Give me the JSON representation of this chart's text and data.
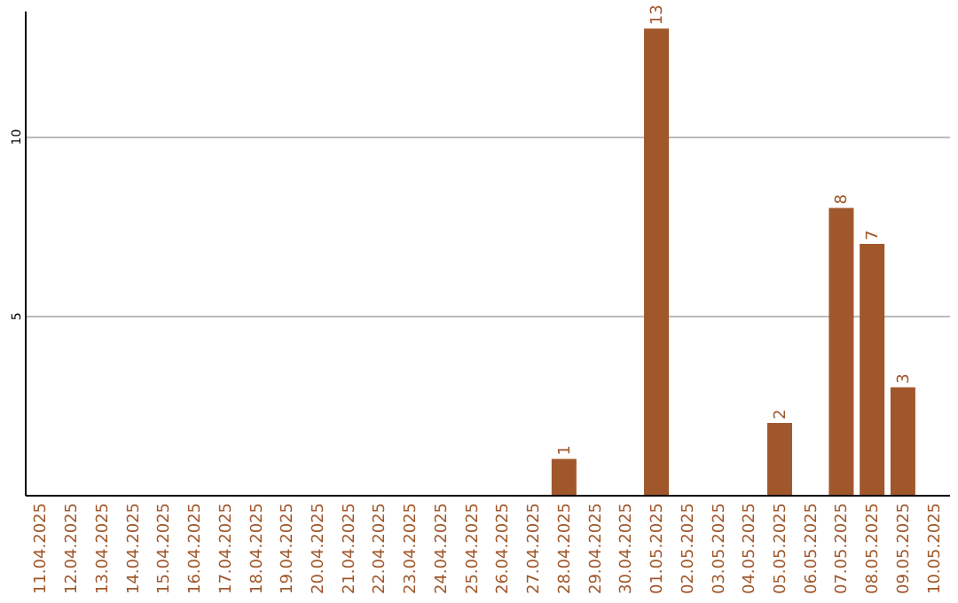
{
  "chart_data": {
    "type": "bar",
    "categories": [
      "11.04.2025",
      "12.04.2025",
      "13.04.2025",
      "14.04.2025",
      "15.04.2025",
      "16.04.2025",
      "17.04.2025",
      "18.04.2025",
      "19.04.2025",
      "20.04.2025",
      "21.04.2025",
      "22.04.2025",
      "23.04.2025",
      "24.04.2025",
      "25.04.2025",
      "26.04.2025",
      "27.04.2025",
      "28.04.2025",
      "29.04.2025",
      "30.04.2025",
      "01.05.2025",
      "02.05.2025",
      "03.05.2025",
      "04.05.2025",
      "05.05.2025",
      "06.05.2025",
      "07.05.2025",
      "08.05.2025",
      "09.05.2025",
      "10.05.2025"
    ],
    "values": [
      0,
      0,
      0,
      0,
      0,
      0,
      0,
      0,
      0,
      0,
      0,
      0,
      0,
      0,
      0,
      0,
      0,
      1,
      0,
      0,
      13,
      0,
      0,
      0,
      2,
      0,
      8,
      7,
      3,
      0
    ],
    "value_labels": [
      null,
      null,
      null,
      null,
      null,
      null,
      null,
      null,
      null,
      null,
      null,
      null,
      null,
      null,
      null,
      null,
      null,
      "1",
      null,
      null,
      "13",
      null,
      null,
      null,
      "2",
      null,
      "8",
      "7",
      "3",
      null
    ],
    "color": "#a0572b",
    "ylim": [
      0,
      13.5
    ],
    "yticks": [
      5,
      10
    ],
    "grid": "y"
  }
}
